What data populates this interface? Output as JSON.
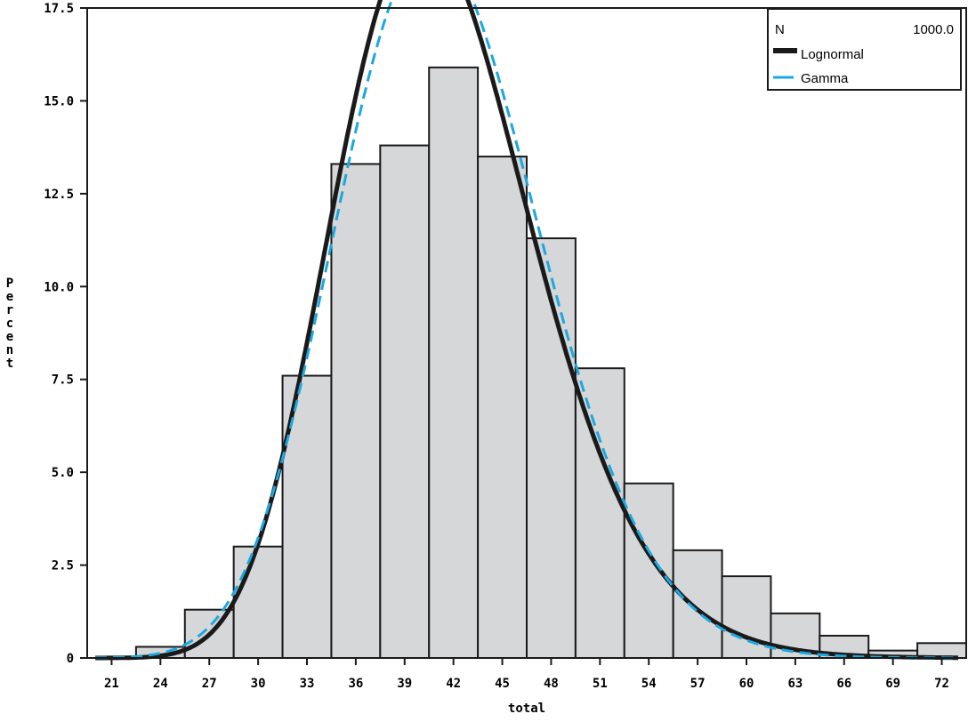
{
  "chart_data": {
    "type": "bar",
    "subtype": "histogram",
    "xlabel": "total",
    "ylabel": "Percent",
    "x_ticks": [
      "21",
      "24",
      "27",
      "30",
      "33",
      "36",
      "39",
      "42",
      "45",
      "48",
      "51",
      "54",
      "57",
      "60",
      "63",
      "66",
      "69",
      "72"
    ],
    "y_ticks": [
      "0",
      "2.5",
      "5.0",
      "7.5",
      "10.0",
      "12.5",
      "15.0",
      "17.5"
    ],
    "ylim": [
      0,
      17.5
    ],
    "xlim": [
      19.5,
      73.5
    ],
    "bin_width": 3,
    "bin_centers": [
      21,
      24,
      27,
      30,
      33,
      36,
      39,
      42,
      45,
      48,
      51,
      54,
      57,
      60,
      63,
      66,
      69,
      72
    ],
    "values": [
      0,
      0.3,
      1.3,
      3.0,
      7.6,
      13.3,
      13.8,
      15.9,
      13.5,
      11.3,
      7.8,
      4.7,
      2.9,
      2.2,
      1.2,
      0.6,
      0.2,
      0.4
    ],
    "series": [
      {
        "name": "Lognormal",
        "style": "solid",
        "color": "#1a1a1a",
        "mean": 41.5,
        "sd": 6.3
      },
      {
        "name": "Gamma",
        "style": "dashed",
        "color": "#1ba8e0",
        "mean": 41.6,
        "sd": 6.3
      }
    ],
    "legend": {
      "n_label": "N",
      "n_value": "1000.0",
      "entries": [
        "Lognormal",
        "Gamma"
      ],
      "placement": "top-right"
    },
    "bar_fill": "#d6d7d9",
    "bar_stroke": "#1a1a1a",
    "grid": false
  }
}
